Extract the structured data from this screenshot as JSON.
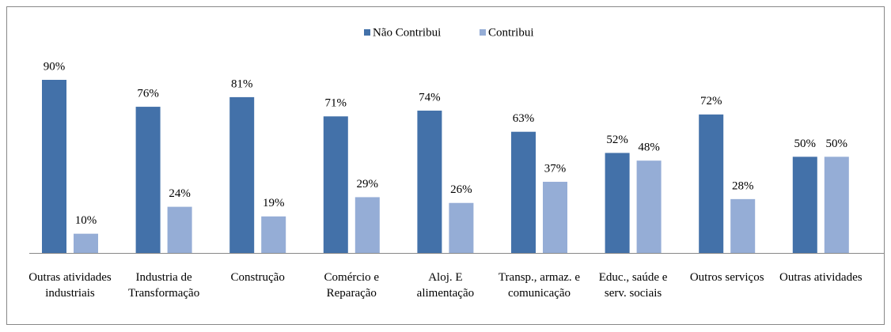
{
  "chart_data": {
    "type": "bar",
    "categories": [
      "Outras atividades industriais",
      "Industria de Transformação",
      "Construção",
      "Comércio e Reparação",
      "Aloj. E alimentação",
      "Transp., armaz. e comunicação",
      "Educ., saúde e serv. sociais",
      "Outros serviços",
      "Outras atividades"
    ],
    "series": [
      {
        "name": "Não Contribui",
        "color": "#4371a9",
        "values": [
          90,
          76,
          81,
          71,
          74,
          63,
          52,
          72,
          50
        ],
        "value_labels": [
          "90%",
          "76%",
          "81%",
          "71%",
          "74%",
          "63%",
          "52%",
          "72%",
          "50%"
        ]
      },
      {
        "name": "Contribui",
        "color": "#95add6",
        "values": [
          10,
          24,
          19,
          29,
          26,
          37,
          48,
          28,
          50
        ],
        "value_labels": [
          "10%",
          "24%",
          "19%",
          "29%",
          "26%",
          "37%",
          "48%",
          "28%",
          "50%"
        ]
      }
    ],
    "legend": "top"
  }
}
